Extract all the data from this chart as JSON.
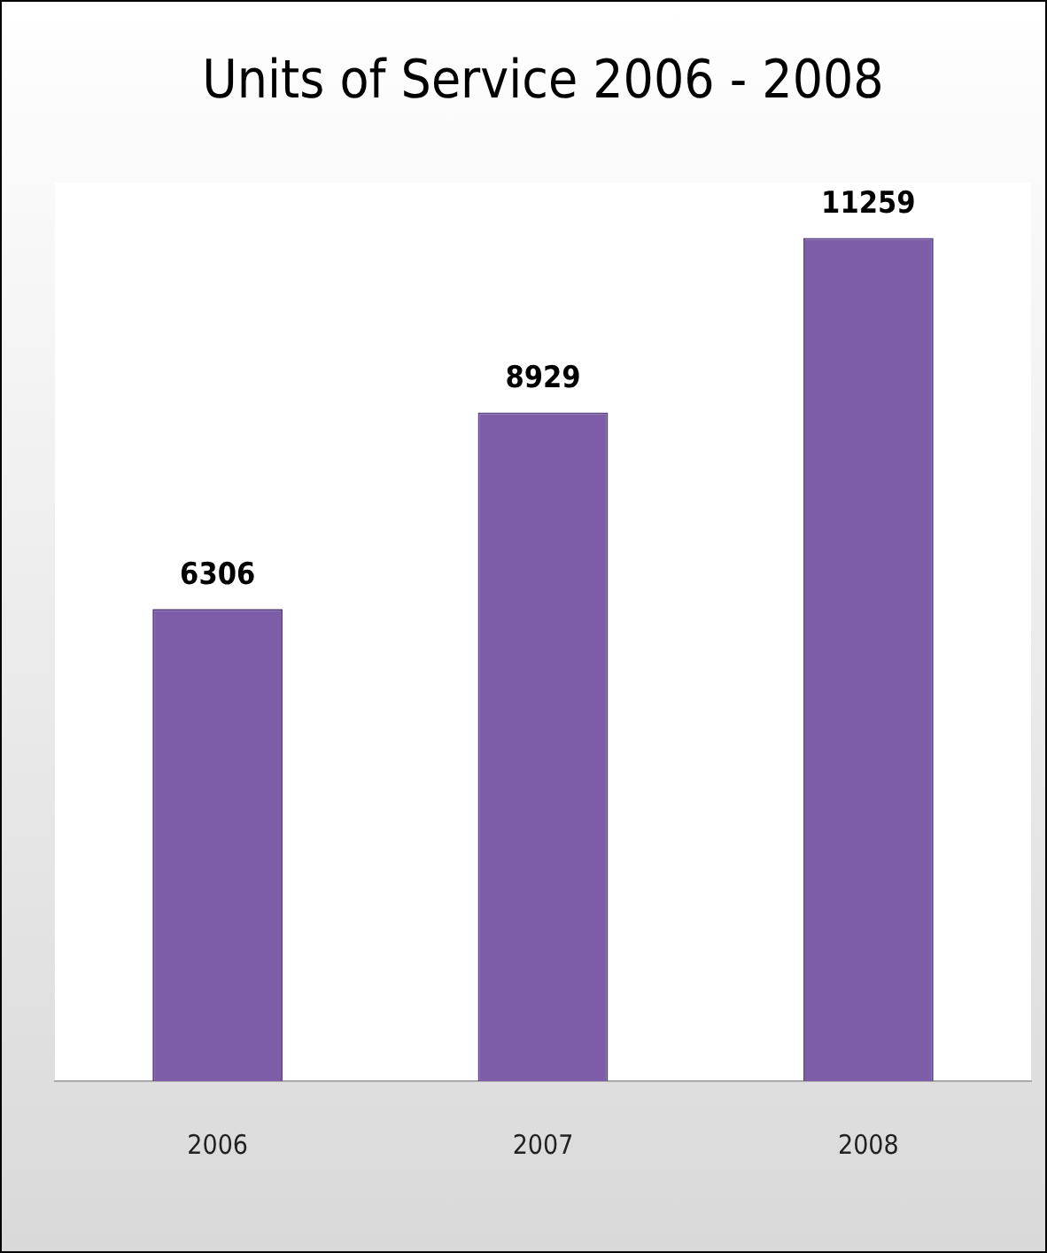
{
  "chart_data": {
    "type": "bar",
    "title": "Units of Service 2006 - 2008",
    "categories": [
      "2006",
      "2007",
      "2008"
    ],
    "values": [
      6306,
      8929,
      11259
    ],
    "color": "#7d5ca8",
    "ylim": [
      0,
      12000
    ],
    "tick_labels": "x",
    "grid": false,
    "legend": false,
    "data_labels": true
  }
}
